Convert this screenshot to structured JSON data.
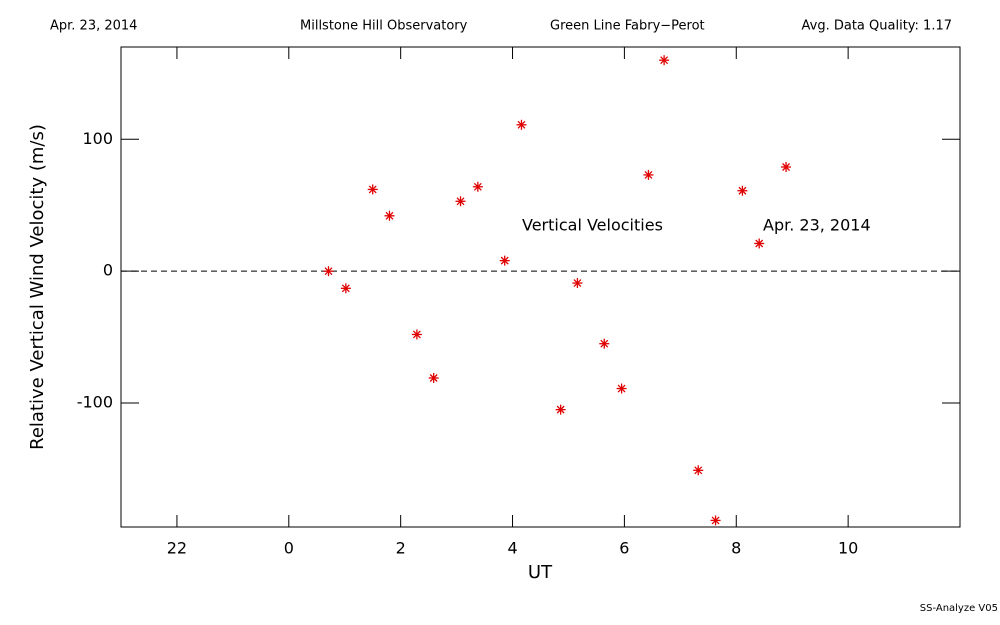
{
  "chart_data": {
    "type": "scatter",
    "header": [
      "Apr. 23, 2014",
      "Millstone Hill Observatory",
      "Green Line Fabry−Perot",
      "Avg. Data Quality: 1.17"
    ],
    "annotations": [
      "Vertical Velocities",
      "Apr. 23, 2014"
    ],
    "x_label": "UT",
    "y_label": "Relative Vertical Wind Velocity (m/s)",
    "footer": "SS-Analyze V05",
    "color": "#e00000",
    "reference_line": 0,
    "xlim": [
      -3,
      12
    ],
    "ylim": [
      -194,
      170
    ],
    "xticks": [
      {
        "value": -2,
        "label": "22"
      },
      0,
      2,
      4,
      6,
      8,
      10
    ],
    "yticks": [
      -100,
      0,
      100
    ],
    "x": [
      0.71,
      1.02,
      1.5,
      1.8,
      2.29,
      2.59,
      3.07,
      3.38,
      3.86,
      4.16,
      4.86,
      5.16,
      5.64,
      5.95,
      6.43,
      6.71,
      7.32,
      7.63,
      8.11,
      8.41,
      8.89
    ],
    "values": [
      0,
      -13,
      62,
      42,
      -48,
      -81,
      53,
      64,
      8,
      111,
      -105,
      -9,
      -55,
      -89,
      73,
      160,
      -151,
      -189,
      61,
      21,
      79
    ]
  }
}
